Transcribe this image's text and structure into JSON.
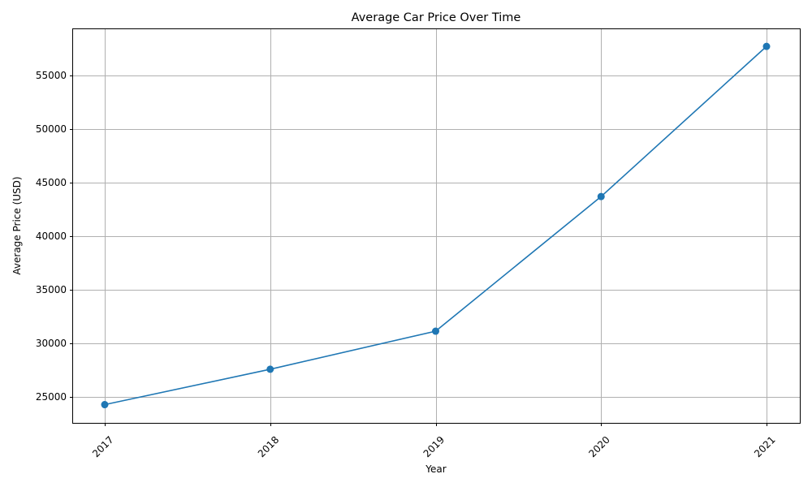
{
  "chart_data": {
    "type": "line",
    "title": "Average Car Price Over Time",
    "xlabel": "Year",
    "ylabel": "Average Price (USD)",
    "categories": [
      "2017",
      "2018",
      "2019",
      "2020",
      "2021"
    ],
    "series": [
      {
        "values": [
          24300,
          27600,
          31150,
          43700,
          57700
        ],
        "color": "#1f77b4",
        "marker": "circle"
      }
    ],
    "yticks": [
      25000,
      30000,
      35000,
      40000,
      45000,
      50000,
      55000
    ],
    "ylim": [
      22600,
      59300
    ],
    "grid": true,
    "xtick_rotation": 45
  }
}
